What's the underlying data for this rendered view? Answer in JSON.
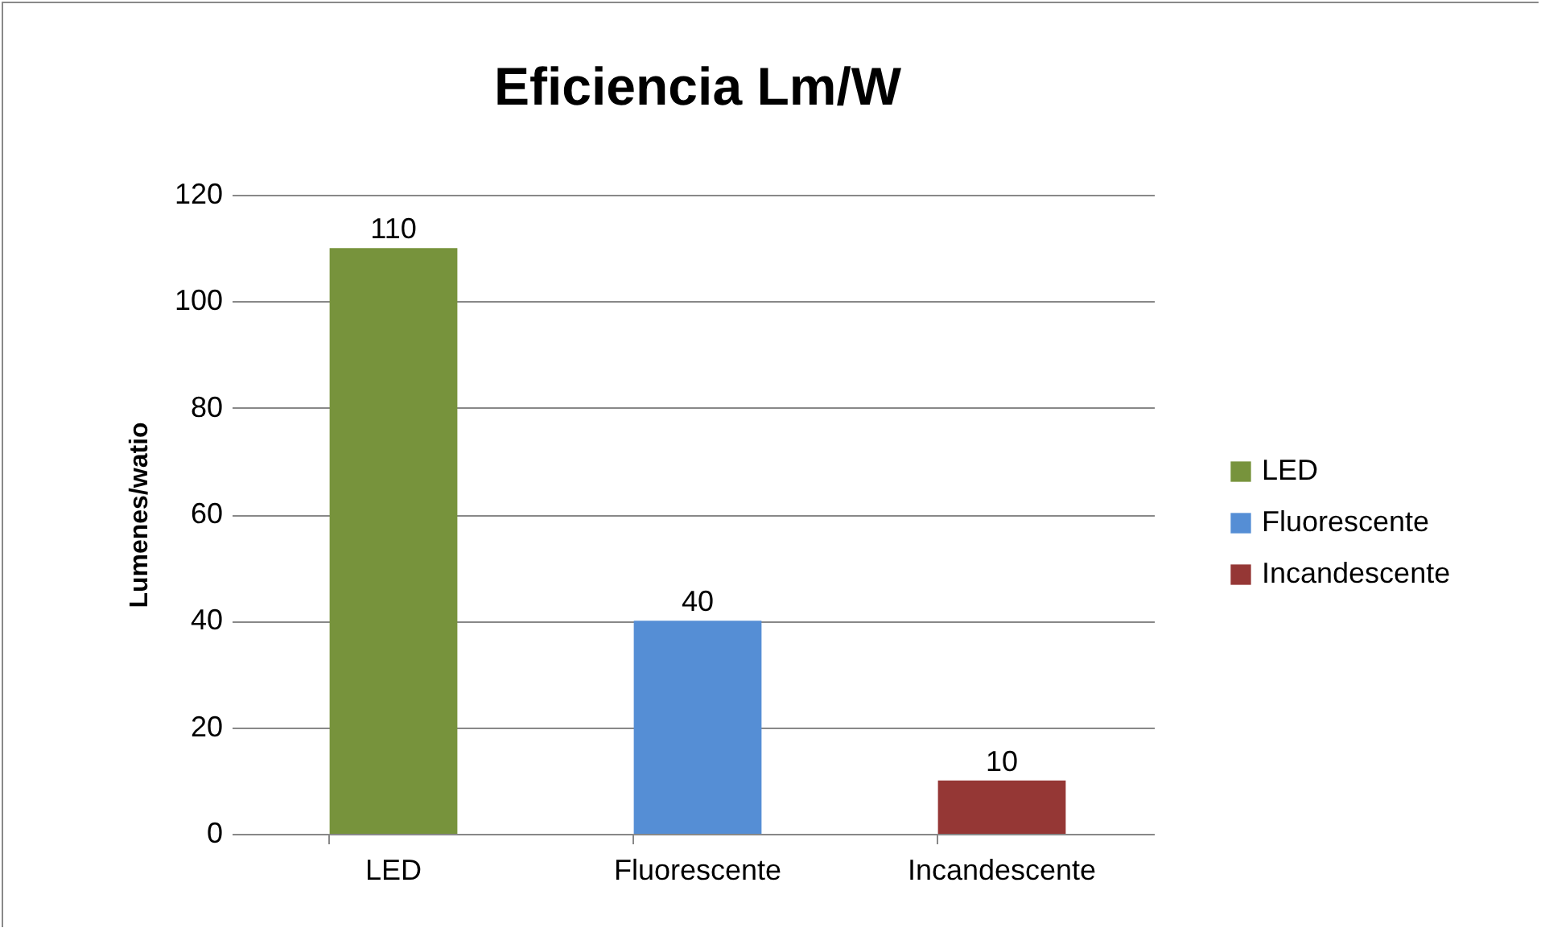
{
  "chart_data": {
    "type": "bar",
    "title": "Eficiencia Lm/W",
    "ylabel": "Lumenes/watio",
    "categories": [
      "LED",
      "Fluorescente",
      "Incandescente"
    ],
    "series": [
      {
        "name": "LED",
        "color": "#77933c",
        "values": [
          110,
          null,
          null
        ]
      },
      {
        "name": "Fluorescente",
        "color": "#558ed5",
        "values": [
          null,
          40,
          null
        ]
      },
      {
        "name": "Incandescente",
        "color": "#953735",
        "values": [
          null,
          null,
          10
        ]
      }
    ],
    "ylim": [
      0,
      120
    ],
    "yticks": [
      0,
      20,
      40,
      60,
      80,
      100,
      120
    ],
    "grid": "y",
    "legend": "right",
    "data_labels": true
  }
}
